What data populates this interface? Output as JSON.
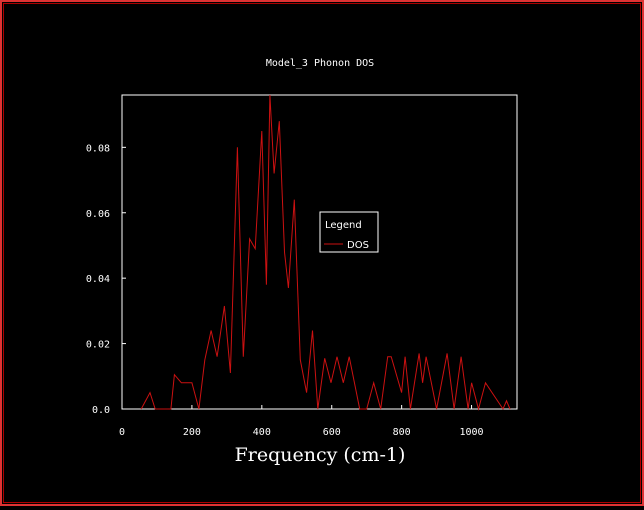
{
  "colors": {
    "background": "#000000",
    "window_border": "#d33333",
    "axes": "#ffffff",
    "series": "#cc1111",
    "text": "#ffffff"
  },
  "chart_data": {
    "type": "line",
    "title": "Model_3 Phonon DOS",
    "xlabel": "Frequency (cm-1)",
    "ylabel": "",
    "xlim": [
      0,
      1130
    ],
    "ylim": [
      0,
      0.096
    ],
    "xticks": [
      0,
      200,
      400,
      600,
      800,
      1000
    ],
    "yticks": [
      0.0,
      0.02,
      0.04,
      0.06,
      0.08
    ],
    "xtick_labels": [
      "0",
      "200",
      "400",
      "600",
      "800",
      "1000"
    ],
    "ytick_labels": [
      "0.0",
      "0.02",
      "0.04",
      "0.06",
      "0.08"
    ],
    "grid": false,
    "legend": {
      "title": "Legend",
      "position": "center-right"
    },
    "series": [
      {
        "name": "DOS",
        "x": [
          55,
          80,
          95,
          140,
          150,
          170,
          200,
          220,
          237,
          255,
          272,
          293,
          310,
          330,
          347,
          365,
          381,
          400,
          413,
          423,
          435,
          450,
          465,
          476,
          493,
          510,
          528,
          545,
          560,
          580,
          598,
          615,
          633,
          650,
          680,
          700,
          720,
          740,
          760,
          770,
          800,
          810,
          825,
          850,
          860,
          870,
          900,
          930,
          950,
          970,
          990,
          1000,
          1020,
          1040,
          1090,
          1100,
          1110
        ],
        "y": [
          0.0,
          0.005,
          0.0,
          0.0,
          0.0105,
          0.008,
          0.008,
          0.0,
          0.015,
          0.024,
          0.016,
          0.0315,
          0.011,
          0.08,
          0.016,
          0.052,
          0.049,
          0.085,
          0.038,
          0.096,
          0.072,
          0.088,
          0.048,
          0.037,
          0.064,
          0.015,
          0.005,
          0.024,
          0.0,
          0.0155,
          0.008,
          0.016,
          0.008,
          0.016,
          0.0,
          0.0,
          0.008,
          0.0,
          0.016,
          0.016,
          0.005,
          0.016,
          0.0,
          0.017,
          0.008,
          0.016,
          0.0,
          0.017,
          0.0,
          0.016,
          0.0,
          0.008,
          0.0,
          0.008,
          0.0,
          0.0025,
          0.0
        ]
      }
    ]
  }
}
